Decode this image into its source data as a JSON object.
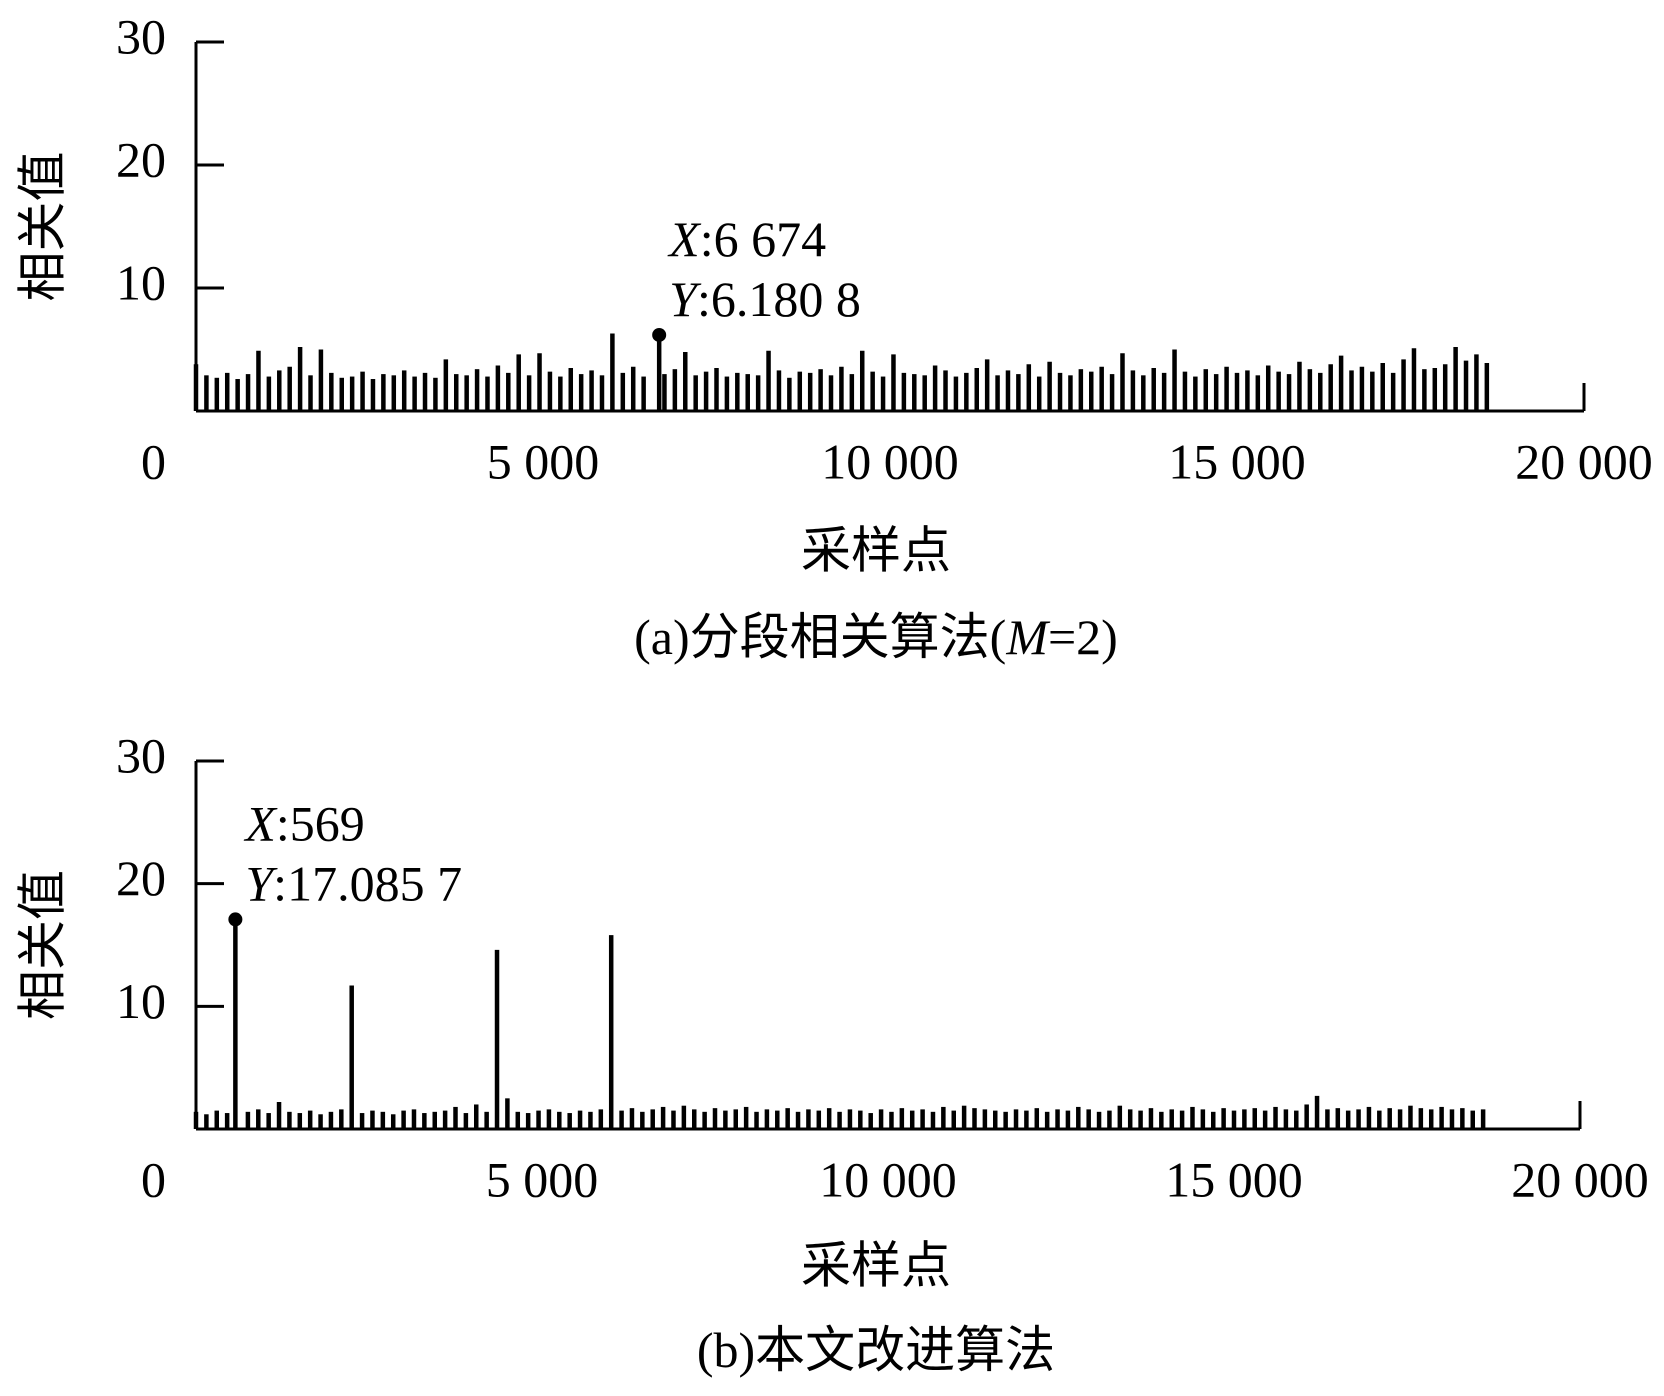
{
  "chart_data": [
    {
      "type": "stem",
      "title_parts": [
        {
          "text": "(a)分段相关算法(",
          "italic": false
        },
        {
          "text": "M",
          "italic": true
        },
        {
          "text": "=2)",
          "italic": false
        }
      ],
      "x_label": "采样点",
      "y_label": "相关值",
      "xlim": [
        0,
        20000
      ],
      "ylim": [
        0,
        30
      ],
      "xticks": [
        0,
        {
          "value": 5000,
          "label": "5 000"
        },
        {
          "value": 10000,
          "label": "10 000"
        },
        {
          "value": 15000,
          "label": "15 000"
        },
        {
          "value": 20000,
          "label": "20 000"
        }
      ],
      "yticks": [
        10,
        20,
        30
      ],
      "color": "#000000",
      "x": [
        0,
        150,
        300,
        450,
        600,
        750,
        900,
        1050,
        1200,
        1350,
        1500,
        1650,
        1800,
        1950,
        2100,
        2250,
        2400,
        2550,
        2700,
        2850,
        3000,
        3150,
        3300,
        3450,
        3600,
        3750,
        3900,
        4050,
        4200,
        4350,
        4500,
        4650,
        4800,
        4950,
        5100,
        5250,
        5400,
        5550,
        5700,
        5850,
        6000,
        6150,
        6300,
        6450,
        6674,
        6750,
        6900,
        7050,
        7200,
        7350,
        7500,
        7650,
        7800,
        7950,
        8100,
        8250,
        8400,
        8550,
        8700,
        8850,
        9000,
        9150,
        9300,
        9450,
        9600,
        9750,
        9900,
        10050,
        10200,
        10350,
        10500,
        10650,
        10800,
        10950,
        11100,
        11250,
        11400,
        11550,
        11700,
        11850,
        12000,
        12150,
        12300,
        12450,
        12600,
        12750,
        12900,
        13050,
        13200,
        13350,
        13500,
        13650,
        13800,
        13950,
        14100,
        14250,
        14400,
        14550,
        14700,
        14850,
        15000,
        15150,
        15300,
        15450,
        15600,
        15750,
        15900,
        16050,
        16200,
        16350,
        16500,
        16650,
        16800,
        16950,
        17100,
        17250,
        17400,
        17550,
        17700,
        17850,
        18000,
        18150,
        18300,
        18450,
        18600
      ],
      "values": [
        3.8,
        2.9,
        2.7,
        3.1,
        2.6,
        3.0,
        4.9,
        2.8,
        3.3,
        3.6,
        5.2,
        2.9,
        5.0,
        3.1,
        2.7,
        2.8,
        3.2,
        2.6,
        3.0,
        2.9,
        3.3,
        2.8,
        3.1,
        2.7,
        4.2,
        3.0,
        2.9,
        3.4,
        2.8,
        3.7,
        3.1,
        4.6,
        2.9,
        4.7,
        3.2,
        2.8,
        3.5,
        3.0,
        3.3,
        2.9,
        6.3,
        3.1,
        3.6,
        2.8,
        6.1808,
        3.0,
        3.4,
        4.8,
        2.9,
        3.2,
        3.5,
        2.8,
        3.1,
        3.0,
        2.9,
        4.9,
        3.3,
        2.7,
        3.2,
        3.1,
        3.4,
        2.9,
        3.6,
        3.0,
        4.9,
        3.2,
        2.8,
        4.6,
        3.1,
        3.0,
        2.9,
        3.7,
        3.3,
        2.8,
        3.1,
        3.5,
        4.2,
        2.9,
        3.3,
        3.0,
        3.8,
        2.8,
        4.0,
        3.1,
        2.9,
        3.4,
        3.2,
        3.6,
        3.0,
        4.7,
        3.3,
        2.9,
        3.5,
        3.1,
        5.0,
        3.2,
        2.8,
        3.4,
        3.0,
        3.6,
        3.1,
        3.3,
        2.9,
        3.7,
        3.2,
        3.0,
        4.0,
        3.4,
        3.1,
        3.8,
        4.5,
        3.3,
        3.6,
        3.2,
        3.9,
        3.1,
        4.2,
        5.1,
        3.4,
        3.5,
        3.8,
        5.2,
        4.1,
        4.6,
        3.9
      ],
      "annotation": {
        "x": 6674,
        "y": 6.1808,
        "lines": [
          [
            "X",
            ":6 674"
          ],
          [
            "Y",
            ":6.180 8"
          ]
        ]
      }
    },
    {
      "type": "stem",
      "title_parts": [
        {
          "text": "(b)本文改进算法",
          "italic": false
        }
      ],
      "x_label": "采样点",
      "y_label": "相关值",
      "xlim": [
        0,
        20000
      ],
      "ylim": [
        0,
        30
      ],
      "xticks": [
        0,
        {
          "value": 5000,
          "label": "5 000"
        },
        {
          "value": 10000,
          "label": "10 000"
        },
        {
          "value": 15000,
          "label": "15 000"
        },
        {
          "value": 20000,
          "label": "20 000"
        }
      ],
      "yticks": [
        10,
        20,
        30
      ],
      "color": "#000000",
      "x": [
        0,
        150,
        300,
        450,
        569,
        750,
        900,
        1050,
        1200,
        1350,
        1500,
        1650,
        1800,
        1950,
        2100,
        2250,
        2400,
        2550,
        2700,
        2850,
        3000,
        3150,
        3300,
        3450,
        3600,
        3750,
        3900,
        4050,
        4200,
        4350,
        4500,
        4650,
        4800,
        4950,
        5100,
        5250,
        5400,
        5550,
        5700,
        5850,
        6000,
        6150,
        6300,
        6450,
        6600,
        6750,
        6900,
        7050,
        7200,
        7350,
        7500,
        7650,
        7800,
        7950,
        8100,
        8250,
        8400,
        8550,
        8700,
        8850,
        9000,
        9150,
        9300,
        9450,
        9600,
        9750,
        9900,
        10050,
        10200,
        10350,
        10500,
        10650,
        10800,
        10950,
        11100,
        11250,
        11400,
        11550,
        11700,
        11850,
        12000,
        12150,
        12300,
        12450,
        12600,
        12750,
        12900,
        13050,
        13200,
        13350,
        13500,
        13650,
        13800,
        13950,
        14100,
        14250,
        14400,
        14550,
        14700,
        14850,
        15000,
        15150,
        15300,
        15450,
        15600,
        15750,
        15900,
        16050,
        16200,
        16350,
        16500,
        16650,
        16800,
        16950,
        17100,
        17250,
        17400,
        17550,
        17700,
        17850,
        18000,
        18150,
        18300,
        18450,
        18600
      ],
      "values": [
        1.4,
        1.2,
        1.5,
        1.3,
        17.0857,
        1.4,
        1.6,
        1.3,
        2.2,
        1.4,
        1.3,
        1.5,
        1.2,
        1.4,
        1.6,
        11.7,
        1.3,
        1.5,
        1.4,
        1.2,
        1.5,
        1.6,
        1.3,
        1.4,
        1.5,
        1.8,
        1.3,
        2.0,
        1.4,
        14.6,
        2.5,
        1.4,
        1.3,
        1.5,
        1.6,
        1.4,
        1.3,
        1.5,
        1.4,
        1.6,
        15.8,
        1.5,
        1.7,
        1.4,
        1.6,
        1.8,
        1.5,
        1.9,
        1.6,
        1.4,
        1.7,
        1.5,
        1.6,
        1.8,
        1.4,
        1.6,
        1.5,
        1.7,
        1.4,
        1.6,
        1.5,
        1.7,
        1.4,
        1.6,
        1.5,
        1.3,
        1.6,
        1.4,
        1.7,
        1.5,
        1.6,
        1.4,
        1.8,
        1.5,
        1.9,
        1.7,
        1.6,
        1.5,
        1.4,
        1.6,
        1.5,
        1.7,
        1.4,
        1.6,
        1.5,
        1.8,
        1.6,
        1.4,
        1.5,
        1.9,
        1.6,
        1.5,
        1.7,
        1.4,
        1.6,
        1.5,
        1.8,
        1.6,
        1.4,
        1.7,
        1.5,
        1.6,
        1.7,
        1.5,
        1.8,
        1.6,
        1.5,
        2.0,
        2.7,
        1.6,
        1.7,
        1.5,
        1.6,
        1.8,
        1.5,
        1.7,
        1.6,
        1.9,
        1.7,
        1.6,
        1.8,
        1.6,
        1.7,
        1.5,
        1.6
      ],
      "annotation": {
        "x": 569,
        "y": 17.0857,
        "lines": [
          [
            "X",
            ":569"
          ],
          [
            "Y",
            ":17.085 7"
          ]
        ]
      }
    }
  ]
}
